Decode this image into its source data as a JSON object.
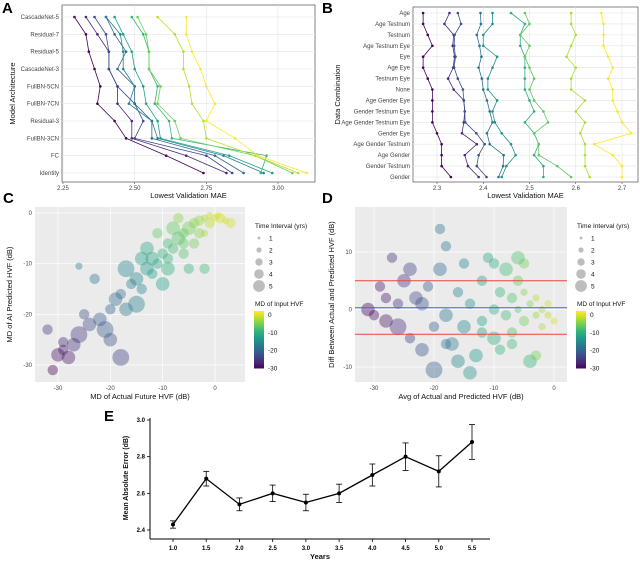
{
  "panels": {
    "A": "A",
    "B": "B",
    "C": "C",
    "D": "D",
    "E": "E"
  },
  "chart_data": [
    {
      "panel": "A",
      "type": "line",
      "xlabel": "Lowest Validation MAE",
      "ylabel": "Model Architecture",
      "xlim": [
        2.22,
        3.13
      ],
      "xticks": [
        "2.25",
        "2.50",
        "2.75",
        "3.00"
      ],
      "xtick_values": [
        2.25,
        2.5,
        2.75,
        3.0
      ],
      "grid": true,
      "colormap": "viridis",
      "categories": [
        "CascadeNet-5",
        "Residual-7",
        "Residual-5",
        "CascadeNet-3",
        "FullBN-5CN",
        "FullBN-7CN",
        "Residual-3",
        "FullBN-3CN",
        "FC",
        "Identity"
      ],
      "series": [
        {
          "values": [
            2.29,
            2.33,
            2.34,
            2.36,
            2.38,
            2.37,
            2.43,
            2.47,
            2.61,
            2.74
          ]
        },
        {
          "values": [
            2.33,
            2.37,
            2.41,
            2.41,
            2.44,
            2.44,
            2.49,
            2.49,
            2.68,
            2.82
          ]
        },
        {
          "values": [
            2.36,
            2.4,
            2.41,
            2.41,
            2.44,
            2.5,
            2.53,
            2.5,
            2.75,
            2.84
          ]
        },
        {
          "values": [
            2.4,
            2.43,
            2.47,
            2.44,
            2.5,
            2.5,
            2.56,
            2.56,
            2.78,
            2.88
          ]
        },
        {
          "values": [
            2.4,
            2.45,
            2.46,
            2.46,
            2.5,
            2.48,
            2.56,
            2.58,
            2.81,
            2.95
          ]
        },
        {
          "values": [
            2.43,
            2.46,
            2.49,
            2.5,
            2.53,
            2.54,
            2.58,
            2.59,
            2.83,
            2.98
          ]
        },
        {
          "values": [
            2.49,
            2.53,
            2.55,
            2.55,
            2.58,
            2.57,
            2.62,
            2.63,
            2.96,
            2.94
          ]
        },
        {
          "values": [
            2.51,
            2.54,
            2.55,
            2.55,
            2.59,
            2.58,
            2.64,
            2.66,
            2.92,
            3.05
          ]
        },
        {
          "values": [
            2.58,
            2.64,
            2.67,
            2.67,
            2.69,
            2.7,
            2.74,
            2.75,
            2.92,
            3.07
          ]
        },
        {
          "values": [
            2.68,
            2.68,
            2.7,
            2.73,
            2.75,
            2.78,
            2.75,
            2.85,
            2.93,
            3.1
          ]
        }
      ]
    },
    {
      "panel": "B",
      "type": "line",
      "xlabel": "Lowest Validation MAE",
      "ylabel": "Data Combination",
      "xlim": [
        2.255,
        2.718
      ],
      "xticks": [
        "2.3",
        "2.4",
        "2.5",
        "2.6",
        "2.7"
      ],
      "xtick_values": [
        2.3,
        2.4,
        2.5,
        2.6,
        2.7
      ],
      "grid": true,
      "colormap": "viridis",
      "categories": [
        "Age",
        "Age Testnum",
        "Testnum",
        "Age Testnum Eye",
        "Eye",
        "Age Eye",
        "Testnum Eye",
        "None",
        "Age Gender Eye",
        "Gender Testnum Eye",
        "Age Gender Testnum Eye",
        "Gender Eye",
        "Age Gender Testnum",
        "Age Gender",
        "Gender Testnum",
        "Gender"
      ],
      "series": [
        {
          "values": [
            2.27,
            2.27,
            2.28,
            2.29,
            2.27,
            2.27,
            2.28,
            2.29,
            2.29,
            2.29,
            2.29,
            2.3,
            2.31,
            2.31,
            2.31,
            2.33
          ]
        },
        {
          "values": [
            2.327,
            2.316,
            2.336,
            2.334,
            2.338,
            2.335,
            2.324,
            2.336,
            2.358,
            2.36,
            2.358,
            2.354,
            2.386,
            2.36,
            2.367,
            2.39
          ]
        },
        {
          "values": [
            2.345,
            2.352,
            2.338,
            2.337,
            2.34,
            2.337,
            2.345,
            2.356,
            2.358,
            2.36,
            2.361,
            2.385,
            2.403,
            2.39,
            2.386,
            2.407
          ]
        },
        {
          "values": [
            2.394,
            2.395,
            2.386,
            2.392,
            2.396,
            2.39,
            2.397,
            2.4,
            2.408,
            2.414,
            2.42,
            2.408,
            2.414,
            2.444,
            2.443,
            2.433
          ]
        },
        {
          "values": [
            2.42,
            2.42,
            2.4,
            2.4,
            2.43,
            2.42,
            2.41,
            2.41,
            2.43,
            2.42,
            2.425,
            2.44,
            2.46,
            2.47,
            2.45,
            2.44
          ]
        },
        {
          "values": [
            2.46,
            2.49,
            2.48,
            2.48,
            2.49,
            2.49,
            2.49,
            2.49,
            2.5,
            2.51,
            2.49,
            2.51,
            2.52,
            2.51,
            2.53,
            2.53
          ]
        },
        {
          "values": [
            2.49,
            2.5,
            2.48,
            2.5,
            2.49,
            2.5,
            2.51,
            2.5,
            2.51,
            2.53,
            2.54,
            2.51,
            2.52,
            2.52,
            2.56,
            2.59
          ]
        },
        {
          "values": [
            2.59,
            2.59,
            2.6,
            2.59,
            2.58,
            2.6,
            2.59,
            2.59,
            2.62,
            2.6,
            2.62,
            2.61,
            2.62,
            2.62,
            2.62,
            2.63
          ]
        },
        {
          "values": [
            2.655,
            2.66,
            2.66,
            2.66,
            2.67,
            2.68,
            2.67,
            2.68,
            2.68,
            2.69,
            2.7,
            2.72,
            2.64,
            2.68,
            2.7,
            2.7
          ]
        }
      ]
    },
    {
      "panel": "C",
      "type": "scatter",
      "xlabel": "MD of Actual Future HVF (dB)",
      "ylabel": "MD of AI Predicted HVF (dB)",
      "xlim": [
        -34,
        5
      ],
      "ylim": [
        -33.5,
        1.5
      ],
      "xticks": [
        "-30",
        "-20",
        "-10",
        "0"
      ],
      "xtick_values": [
        -30,
        -20,
        -10,
        0
      ],
      "yticks": [
        "0",
        "-10",
        "-20",
        "-30"
      ],
      "ytick_values": [
        0,
        -10,
        -20,
        -30
      ],
      "grid": true,
      "legend_placement": "right",
      "size_legend": {
        "title": "Time Interval (yrs)",
        "labels": [
          "1",
          "2",
          "3",
          "4",
          "5"
        ]
      },
      "color_legend": {
        "title": "MD of Input HVF",
        "labels": [
          "0",
          "-10",
          "-20",
          "-30"
        ],
        "values": [
          0,
          -10,
          -20,
          -30
        ],
        "colormap": "viridis"
      },
      "point_fields": [
        "actual_md",
        "predicted_md",
        "time_interval_yrs",
        "input_md"
      ],
      "points": [
        [
          -31,
          -31,
          2,
          -30
        ],
        [
          -30,
          -28,
          3,
          -29
        ],
        [
          -29,
          -27,
          2,
          -28
        ],
        [
          -28,
          -28.5,
          3,
          -28
        ],
        [
          -29,
          -25.5,
          2,
          -27
        ],
        [
          -27,
          -26,
          3,
          -26
        ],
        [
          -32,
          -23,
          2,
          -25
        ],
        [
          -26,
          -24,
          4,
          -25
        ],
        [
          -24,
          -22,
          3,
          -23
        ],
        [
          -25,
          -20,
          2,
          -22
        ],
        [
          -22,
          -21,
          3,
          -21
        ],
        [
          -20,
          -19,
          2,
          -20
        ],
        [
          -19,
          -17,
          3,
          -19
        ],
        [
          -21,
          -23,
          4,
          -21
        ],
        [
          -18,
          -16,
          2,
          -18
        ],
        [
          -17,
          -19,
          3,
          -17
        ],
        [
          -16,
          -14,
          2,
          -16
        ],
        [
          -15,
          -13,
          3,
          -15
        ],
        [
          -14,
          -15,
          2,
          -15
        ],
        [
          -13,
          -11,
          3,
          -13
        ],
        [
          -12,
          -12,
          2,
          -12
        ],
        [
          -12,
          -9,
          3,
          -11
        ],
        [
          -11,
          -10,
          2,
          -11
        ],
        [
          -10,
          -8,
          2,
          -10
        ],
        [
          -9,
          -11,
          3,
          -10
        ],
        [
          -9,
          -6,
          2,
          -8
        ],
        [
          -8,
          -7,
          2,
          -8
        ],
        [
          -7,
          -5,
          3,
          -7
        ],
        [
          -6,
          -4,
          2,
          -6
        ],
        [
          -6,
          -8,
          2,
          -7
        ],
        [
          -5,
          -3,
          3,
          -5
        ],
        [
          -4,
          -2,
          2,
          -4
        ],
        [
          -3,
          -4,
          2,
          -4
        ],
        [
          -3,
          -1.5,
          2,
          -3
        ],
        [
          -2,
          -1,
          1,
          -2
        ],
        [
          -1,
          -2,
          2,
          -1
        ],
        [
          -1,
          -0.5,
          1,
          -1
        ],
        [
          0,
          -1,
          1,
          0
        ],
        [
          0.5,
          -0.5,
          1,
          0
        ],
        [
          1,
          -1,
          2,
          0
        ],
        [
          2,
          -1.5,
          1,
          0
        ],
        [
          3,
          -2,
          2,
          0
        ],
        [
          -4,
          -6,
          2,
          -5
        ],
        [
          -8,
          -3,
          3,
          -6
        ],
        [
          -13,
          -7,
          3,
          -11
        ],
        [
          -17,
          -11,
          4,
          -15
        ],
        [
          -23,
          -13,
          2,
          -18
        ],
        [
          -26,
          -10.5,
          1,
          -16
        ],
        [
          -10,
          -14,
          3,
          -12
        ],
        [
          -15,
          -18,
          4,
          -16
        ],
        [
          -20,
          -25,
          3,
          -22
        ],
        [
          -18,
          -28.5,
          4,
          -24
        ],
        [
          -5,
          -11,
          2,
          -9
        ],
        [
          -2,
          -11,
          2,
          -8
        ],
        [
          -11,
          -4,
          2,
          -6
        ],
        [
          -7,
          -1,
          2,
          -4
        ],
        [
          -14,
          -9,
          3,
          -12
        ],
        [
          -6,
          -6,
          2,
          -6
        ],
        [
          -2,
          -4,
          1,
          -2
        ],
        [
          -9,
          -9,
          2,
          -9
        ]
      ]
    },
    {
      "panel": "D",
      "type": "scatter",
      "xlabel": "Avg of Actual and Predicted HVF (dB)",
      "ylabel": "Diff Between Actual and Predicted HVF (dB)",
      "xlim": [
        -33,
        2
      ],
      "ylim": [
        -12.5,
        18
      ],
      "xticks": [
        "-30",
        "-20",
        "-10",
        "0"
      ],
      "xtick_values": [
        -30,
        -20,
        -10,
        0
      ],
      "yticks": [
        "10",
        "0",
        "-10"
      ],
      "ytick_values": [
        10,
        0,
        -10
      ],
      "grid": true,
      "reference_lines": [
        {
          "y": 5,
          "color": "#e8473d"
        },
        {
          "y": 0.3,
          "color": "#4a5cf0"
        },
        {
          "y": -4.3,
          "color": "#e8473d"
        }
      ],
      "legend_placement": "right",
      "size_legend": {
        "title": "Time Interval (yrs)",
        "labels": [
          "1",
          "2",
          "3",
          "4",
          "5"
        ]
      },
      "color_legend": {
        "title": "MD of Input HVF",
        "labels": [
          "0",
          "-10",
          "-20",
          "-30"
        ],
        "values": [
          0,
          -10,
          -20,
          -30
        ],
        "colormap": "viridis"
      },
      "point_fields": [
        "avg_md",
        "diff",
        "time_interval_yrs",
        "input_md"
      ],
      "points": [
        [
          -31,
          0,
          3,
          -30
        ],
        [
          -30,
          -1,
          2,
          -29
        ],
        [
          -28,
          -2,
          3,
          -28
        ],
        [
          -28,
          2,
          2,
          -28
        ],
        [
          -27,
          9,
          2,
          -26
        ],
        [
          -26,
          -3,
          4,
          -26
        ],
        [
          -25,
          5,
          3,
          -25
        ],
        [
          -24,
          -5,
          2,
          -24
        ],
        [
          -23,
          2,
          3,
          -23
        ],
        [
          -22,
          -7,
          3,
          -22
        ],
        [
          -21,
          4,
          2,
          -21
        ],
        [
          -20,
          -10.5,
          4,
          -20
        ],
        [
          -19,
          14,
          2,
          -18
        ],
        [
          -19,
          7,
          3,
          -19
        ],
        [
          -18,
          -1,
          3,
          -18
        ],
        [
          -18,
          11,
          2,
          -17
        ],
        [
          -17,
          -6,
          3,
          -17
        ],
        [
          -16,
          3,
          2,
          -16
        ],
        [
          -15,
          8,
          2,
          -15
        ],
        [
          -15,
          -3,
          3,
          -15
        ],
        [
          -14,
          1,
          2,
          -14
        ],
        [
          -13,
          -8,
          3,
          -13
        ],
        [
          -12,
          5,
          2,
          -12
        ],
        [
          -12,
          -2,
          2,
          -12
        ],
        [
          -11,
          9,
          2,
          -11
        ],
        [
          -10,
          0,
          2,
          -10
        ],
        [
          -10,
          -5,
          3,
          -10
        ],
        [
          -9,
          3,
          2,
          -9
        ],
        [
          -9,
          -7,
          2,
          -9
        ],
        [
          -8,
          7,
          3,
          -8
        ],
        [
          -8,
          -1,
          2,
          -8
        ],
        [
          -7,
          2,
          2,
          -7
        ],
        [
          -7,
          -4,
          2,
          -7
        ],
        [
          -6,
          5,
          2,
          -6
        ],
        [
          -6,
          0,
          1,
          -6
        ],
        [
          -5,
          -2,
          2,
          -5
        ],
        [
          -5,
          3,
          1,
          -4
        ],
        [
          -4,
          1,
          1,
          -4
        ],
        [
          -4,
          -9,
          3,
          -9
        ],
        [
          -3,
          -1,
          1,
          -3
        ],
        [
          -3,
          2,
          1,
          -2
        ],
        [
          -2,
          0,
          1,
          -2
        ],
        [
          -2,
          -3,
          1,
          -2
        ],
        [
          -1,
          -1,
          1,
          -1
        ],
        [
          -1,
          1,
          1,
          0
        ],
        [
          0,
          -2,
          1,
          0
        ],
        [
          -5,
          8,
          2,
          -5
        ],
        [
          -7,
          -6,
          2,
          -8
        ],
        [
          -16,
          -9,
          3,
          -15
        ],
        [
          -24,
          7,
          3,
          -24
        ],
        [
          -29,
          4,
          2,
          -28
        ],
        [
          -12,
          -4,
          2,
          -12
        ],
        [
          -10,
          8,
          2,
          -10
        ],
        [
          -3,
          -8,
          2,
          -5
        ],
        [
          -14,
          -11,
          3,
          -14
        ],
        [
          -20,
          -3,
          2,
          -20
        ],
        [
          -22,
          1,
          3,
          -22
        ],
        [
          -26,
          1,
          2,
          -26
        ],
        [
          -6,
          9,
          3,
          -7
        ],
        [
          -18,
          -6,
          2,
          -18
        ]
      ]
    },
    {
      "panel": "E",
      "type": "line",
      "xlabel": "Years",
      "ylabel": "Mean Absolute Error (dB)",
      "ylim": [
        2.4,
        3.0
      ],
      "yticks": [
        "2.4",
        "2.6",
        "2.8",
        "3.0"
      ],
      "ytick_values": [
        2.4,
        2.6,
        2.8,
        3.0
      ],
      "categories": [
        "1.0",
        "1.5",
        "2.0",
        "2.5",
        "3.0",
        "3.5",
        "4.0",
        "4.5",
        "5.0",
        "5.5"
      ],
      "values": [
        2.43,
        2.68,
        2.54,
        2.6,
        2.55,
        2.6,
        2.7,
        2.8,
        2.72,
        2.88
      ],
      "errors": [
        0.02,
        0.04,
        0.035,
        0.045,
        0.045,
        0.05,
        0.06,
        0.075,
        0.085,
        0.095
      ],
      "grid": false
    }
  ]
}
